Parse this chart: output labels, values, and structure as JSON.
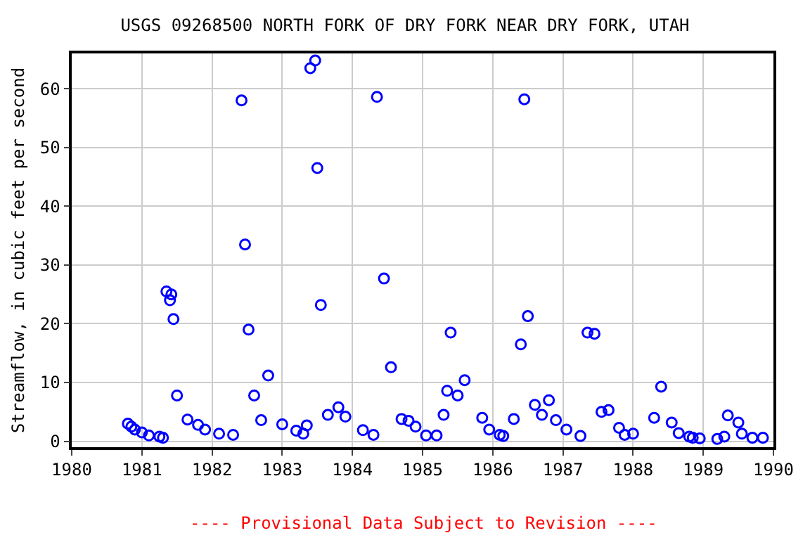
{
  "chart_data": {
    "type": "scatter",
    "title": "USGS 09268500 NORTH FORK OF DRY FORK NEAR DRY FORK, UTAH",
    "ylabel": "Streamflow, in cubic feet per second",
    "annotations": [
      "---- Provisional Data Subject to Revision ----"
    ],
    "xlim": [
      1980,
      1990
    ],
    "xticks": [
      1980,
      1981,
      1982,
      1983,
      1984,
      1985,
      1986,
      1987,
      1988,
      1989,
      1990
    ],
    "ylim": [
      -1,
      66
    ],
    "yticks": [
      0,
      10,
      20,
      30,
      40,
      50,
      60
    ],
    "grid": true,
    "marker": "circle",
    "series": [
      {
        "color": "#0000ff",
        "x": [
          1980.8,
          1980.85,
          1980.9,
          1981.0,
          1981.1,
          1981.25,
          1981.3,
          1981.35,
          1981.4,
          1981.42,
          1981.45,
          1981.5,
          1981.65,
          1981.8,
          1981.9,
          1982.1,
          1982.3,
          1982.42,
          1982.47,
          1982.52,
          1982.6,
          1982.7,
          1982.8,
          1983.0,
          1983.2,
          1983.3,
          1983.35,
          1983.4,
          1983.47,
          1983.5,
          1983.55,
          1983.65,
          1983.8,
          1983.9,
          1984.15,
          1984.3,
          1984.35,
          1984.45,
          1984.55,
          1984.7,
          1984.8,
          1984.9,
          1985.05,
          1985.2,
          1985.3,
          1985.35,
          1985.4,
          1985.5,
          1985.6,
          1985.85,
          1985.95,
          1986.1,
          1986.15,
          1986.3,
          1986.4,
          1986.45,
          1986.5,
          1986.6,
          1986.7,
          1986.8,
          1986.9,
          1987.05,
          1987.25,
          1987.35,
          1987.45,
          1987.55,
          1987.65,
          1987.8,
          1987.88,
          1988.0,
          1988.3,
          1988.4,
          1988.55,
          1988.65,
          1988.8,
          1988.85,
          1988.95,
          1989.2,
          1989.3,
          1989.35,
          1989.5,
          1989.55,
          1989.7,
          1989.85
        ],
        "values": [
          3,
          2.5,
          2,
          1.5,
          1,
          0.8,
          0.6,
          25.5,
          24,
          25,
          20.8,
          7.8,
          3.7,
          2.8,
          2,
          1.3,
          1.1,
          58,
          33.5,
          19,
          7.8,
          3.6,
          11.2,
          2.9,
          1.8,
          1.3,
          2.7,
          63.5,
          64.8,
          46.5,
          23.2,
          4.5,
          5.8,
          4.2,
          1.9,
          1.1,
          58.6,
          27.7,
          12.6,
          3.8,
          3.5,
          2.5,
          1.0,
          1.0,
          4.5,
          8.6,
          18.5,
          7.8,
          10.4,
          4,
          2,
          1.1,
          0.9,
          3.8,
          16.5,
          58.2,
          21.3,
          6.2,
          4.5,
          7,
          3.6,
          2,
          0.9,
          18.5,
          18.3,
          5,
          5.3,
          2.3,
          1.1,
          1.3,
          4,
          9.3,
          3.2,
          1.4,
          0.8,
          0.6,
          0.5,
          0.4,
          0.8,
          4.4,
          3.2,
          1.3,
          0.6,
          0.6
        ]
      }
    ]
  }
}
